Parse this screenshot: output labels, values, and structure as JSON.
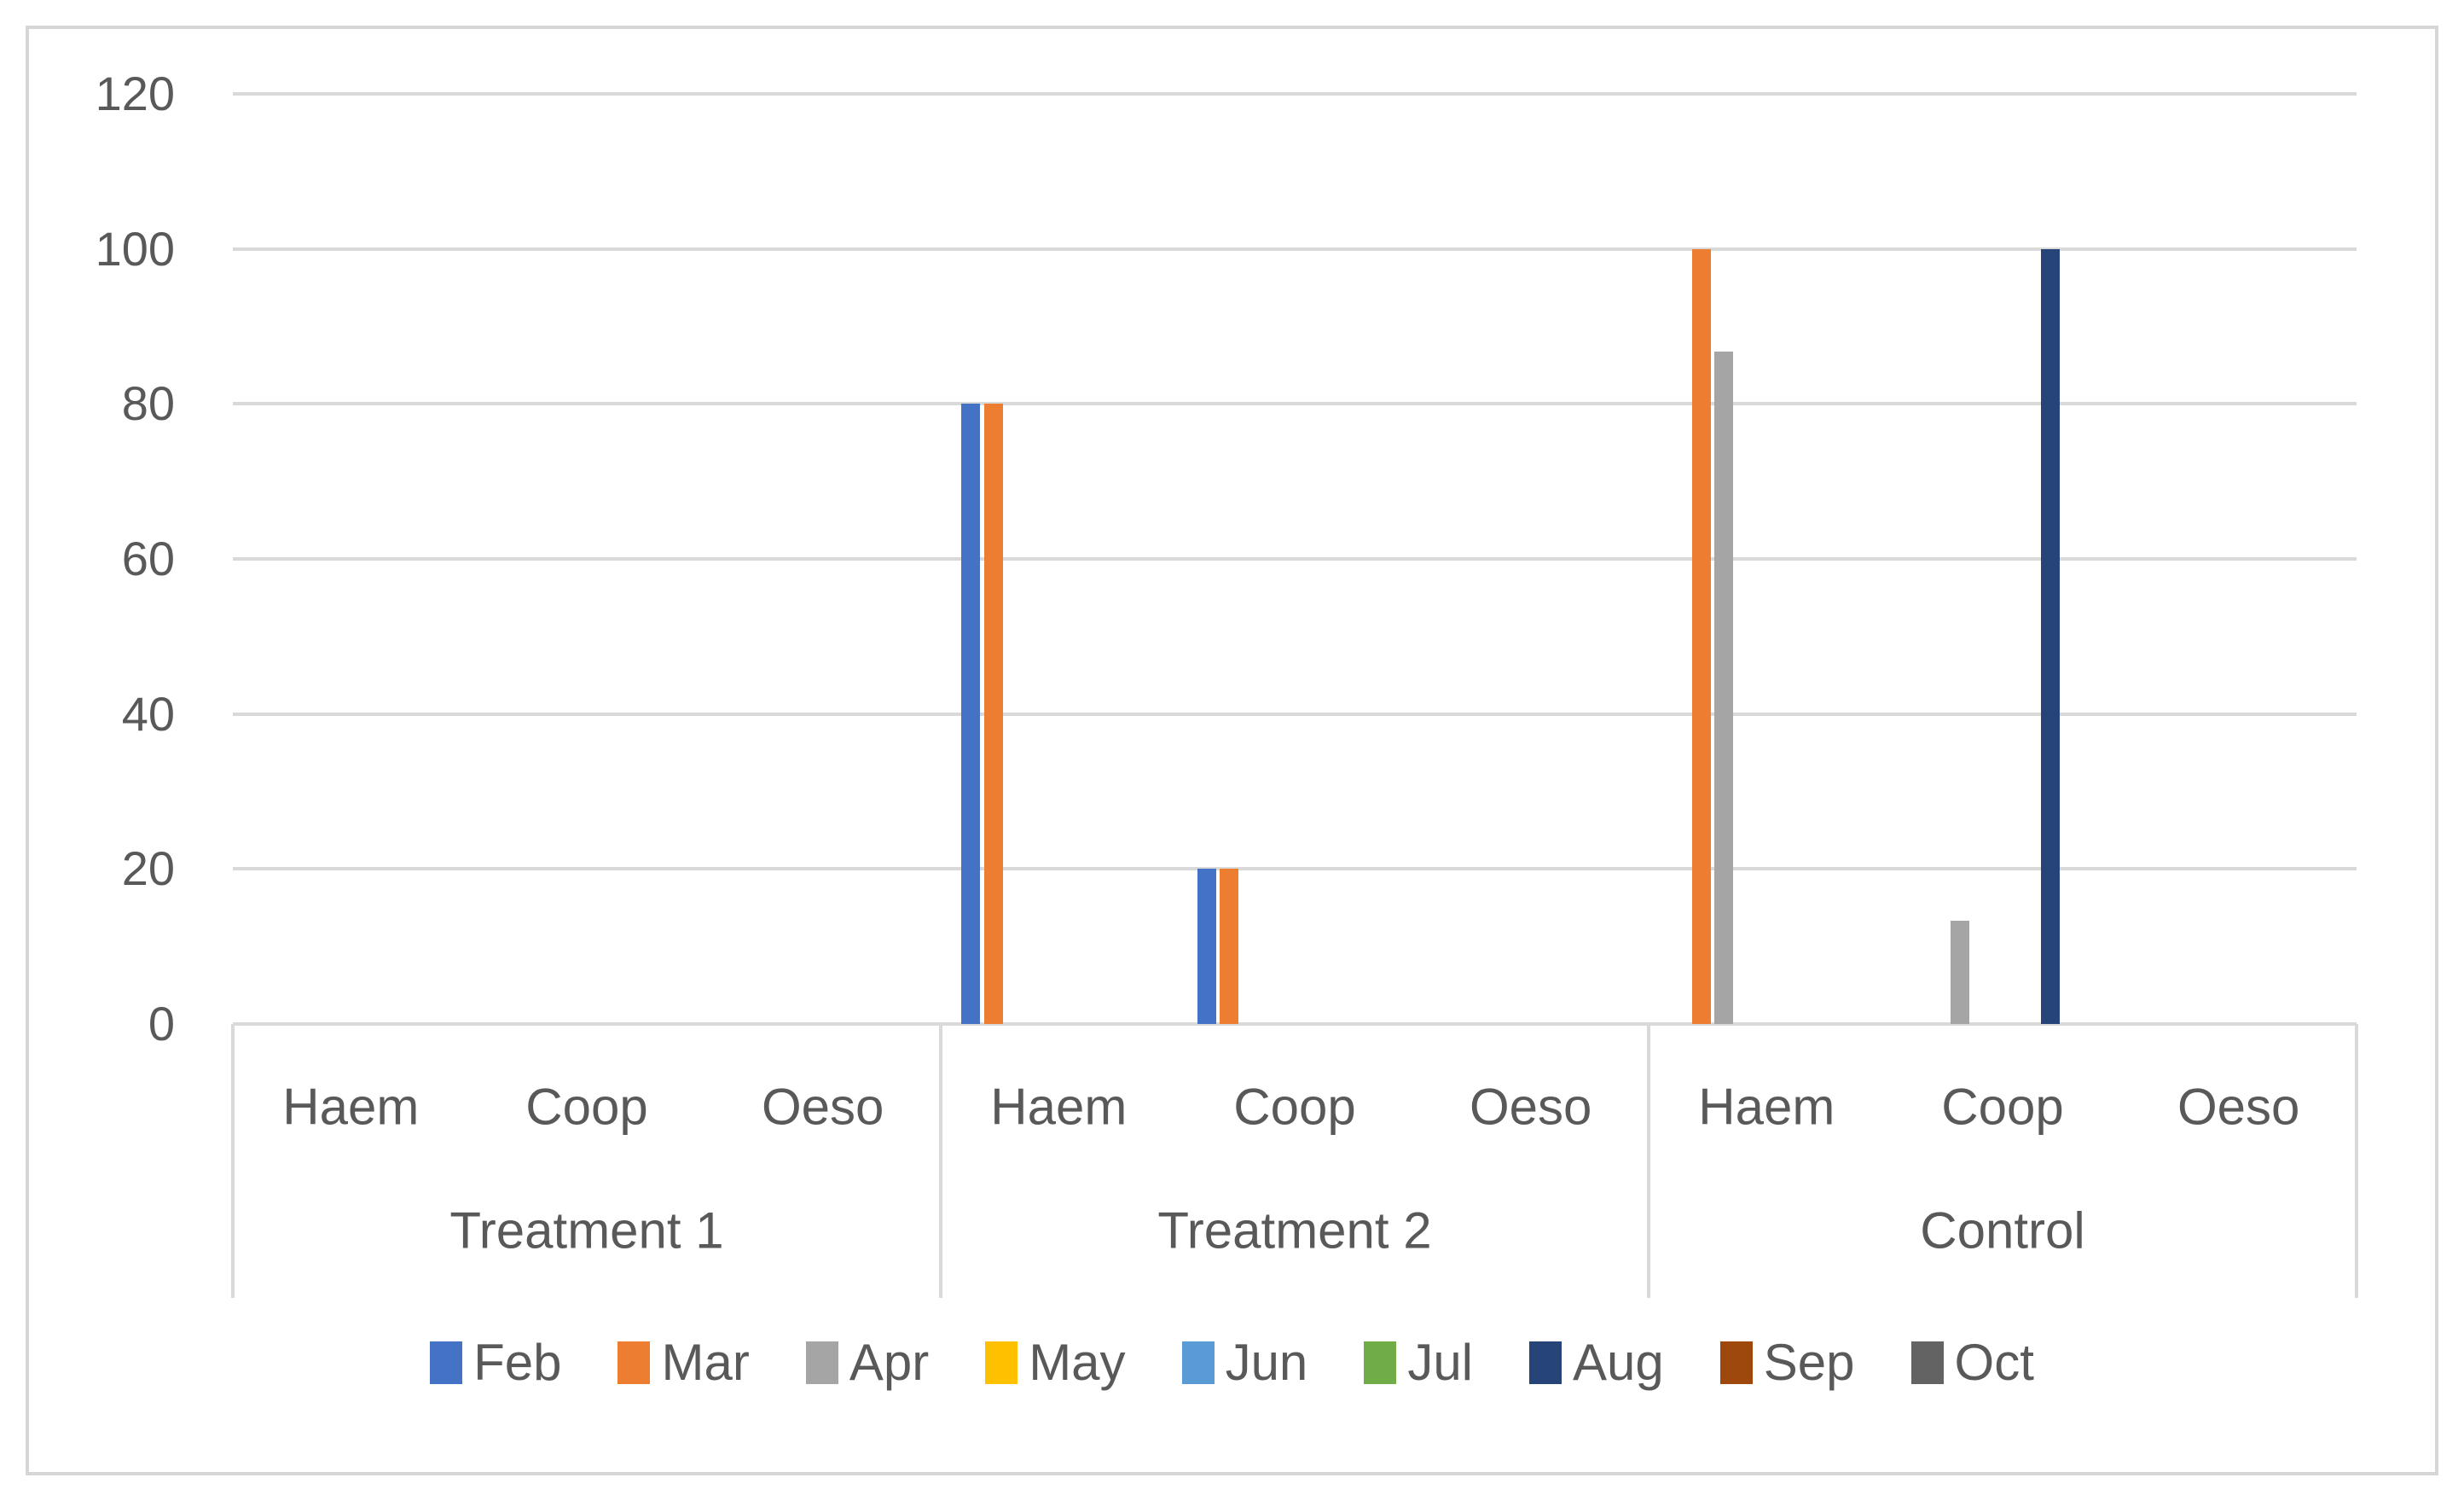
{
  "figure": {
    "background_color": "#ffffff",
    "border_color": "#d6d6d6",
    "text_color": "#595959",
    "gridline_color": "#d9d9d9"
  },
  "chart_data": {
    "type": "bar",
    "title": "",
    "xlabel": "",
    "ylabel": "",
    "ylim": [
      0,
      120
    ],
    "y_ticks": [
      0,
      20,
      40,
      60,
      80,
      100,
      120
    ],
    "grid": "horizontal",
    "legend_position": "bottom",
    "group_labels": [
      "Treatment 1",
      "Treatment 2",
      "Control"
    ],
    "categories": [
      "Haem",
      "Coop",
      "Oeso"
    ],
    "series": [
      {
        "name": "Feb",
        "color": "#4472C4",
        "values": [
          [
            0,
            0,
            0
          ],
          [
            80,
            20,
            0
          ],
          [
            0,
            0,
            0
          ]
        ]
      },
      {
        "name": "Mar",
        "color": "#ED7D31",
        "values": [
          [
            0,
            0,
            0
          ],
          [
            80,
            20,
            0
          ],
          [
            100,
            0,
            0
          ]
        ]
      },
      {
        "name": "Apr",
        "color": "#A5A5A5",
        "values": [
          [
            0,
            0,
            0
          ],
          [
            0,
            0,
            0
          ],
          [
            86.7,
            13.3,
            0
          ]
        ]
      },
      {
        "name": "May",
        "color": "#FFC000",
        "values": [
          [
            0,
            0,
            0
          ],
          [
            0,
            0,
            0
          ],
          [
            0,
            0,
            0
          ]
        ]
      },
      {
        "name": "Jun",
        "color": "#5B9BD5",
        "values": [
          [
            0,
            0,
            0
          ],
          [
            0,
            0,
            0
          ],
          [
            0,
            0,
            0
          ]
        ]
      },
      {
        "name": "Jul",
        "color": "#70AD47",
        "values": [
          [
            0,
            0,
            0
          ],
          [
            0,
            0,
            0
          ],
          [
            0,
            0,
            0
          ]
        ]
      },
      {
        "name": "Aug",
        "color": "#264478",
        "values": [
          [
            0,
            0,
            0
          ],
          [
            0,
            0,
            0
          ],
          [
            0,
            100,
            0
          ]
        ]
      },
      {
        "name": "Sep",
        "color": "#9E480E",
        "values": [
          [
            0,
            0,
            0
          ],
          [
            0,
            0,
            0
          ],
          [
            0,
            0,
            0
          ]
        ]
      },
      {
        "name": "Oct",
        "color": "#636363",
        "values": [
          [
            0,
            0,
            0
          ],
          [
            0,
            0,
            0
          ],
          [
            0,
            0,
            0
          ]
        ]
      }
    ]
  }
}
